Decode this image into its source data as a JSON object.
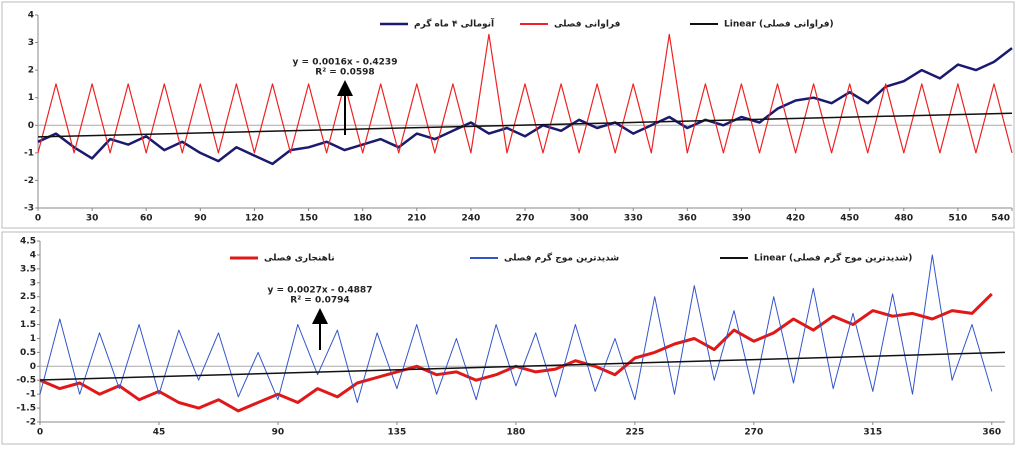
{
  "chart_data": [
    {
      "type": "line",
      "xlim": [
        0,
        540
      ],
      "xticks": [
        0,
        30,
        60,
        90,
        120,
        150,
        180,
        210,
        240,
        270,
        300,
        330,
        360,
        390,
        420,
        450,
        480,
        510,
        540
      ],
      "ylim": [
        -3,
        4
      ],
      "yticks": [
        -3,
        -2,
        -1,
        0,
        1,
        2,
        3,
        4
      ],
      "annotations": [
        "y = 0.0016x - 0.4239",
        "R² = 0.0598"
      ],
      "x": [
        0,
        10,
        20,
        30,
        40,
        50,
        60,
        70,
        80,
        90,
        100,
        110,
        120,
        130,
        140,
        150,
        160,
        170,
        180,
        190,
        200,
        210,
        220,
        230,
        240,
        250,
        260,
        270,
        280,
        290,
        300,
        310,
        320,
        330,
        340,
        350,
        360,
        370,
        380,
        390,
        400,
        410,
        420,
        430,
        440,
        450,
        460,
        470,
        480,
        490,
        500,
        510,
        520,
        530,
        540
      ],
      "series": [
        {
          "name": "آنومالی ۴ ماه گرم",
          "color": "#1a1a6e",
          "width": 2.5,
          "values": [
            -0.6,
            -0.3,
            -0.8,
            -1.2,
            -0.5,
            -0.7,
            -0.4,
            -0.9,
            -0.6,
            -1.0,
            -1.3,
            -0.8,
            -1.1,
            -1.4,
            -0.9,
            -0.8,
            -0.6,
            -0.9,
            -0.7,
            -0.5,
            -0.8,
            -0.3,
            -0.5,
            -0.2,
            0.1,
            -0.3,
            -0.1,
            -0.4,
            0.0,
            -0.2,
            0.2,
            -0.1,
            0.1,
            -0.3,
            0.0,
            0.3,
            -0.1,
            0.2,
            0.0,
            0.3,
            0.1,
            0.6,
            0.9,
            1.0,
            0.8,
            1.2,
            0.8,
            1.4,
            1.6,
            2.0,
            1.7,
            2.2,
            2.0,
            2.3,
            2.8
          ]
        },
        {
          "name": "فراوانی فصلی",
          "color": "#ee2222",
          "width": 1.2,
          "values": [
            -1,
            1.5,
            -1,
            1.5,
            -1,
            1.5,
            -1,
            1.5,
            -1,
            1.5,
            -1,
            1.5,
            -1,
            1.5,
            -1,
            1.5,
            -1,
            1.5,
            -1,
            1.5,
            -1,
            1.5,
            -1,
            1.5,
            -1,
            3.3,
            -1,
            1.5,
            -1,
            1.5,
            -1,
            1.5,
            -1,
            1.5,
            -1,
            3.3,
            -1,
            1.5,
            -1,
            1.5,
            -1,
            1.5,
            -1,
            1.5,
            -1,
            1.5,
            -1,
            1.5,
            -1,
            1.5,
            -1,
            1.5,
            -1,
            1.5,
            -1
          ]
        },
        {
          "name": "Linear (فراوانی فصلی)",
          "color": "#111111",
          "width": 1.5,
          "x": [
            0,
            540
          ],
          "values": [
            -0.42,
            0.44
          ]
        }
      ]
    },
    {
      "type": "line",
      "xlim": [
        0,
        365
      ],
      "xticks": [
        0,
        45,
        90,
        135,
        180,
        225,
        270,
        315,
        360
      ],
      "ylim": [
        -2,
        4.5
      ],
      "yticks": [
        -2,
        -1.5,
        -1,
        -0.5,
        0,
        0.5,
        1,
        1.5,
        2,
        2.5,
        3,
        3.5,
        4,
        4.5
      ],
      "annotations": [
        "y = 0.0027x - 0.4887",
        "R² = 0.0794"
      ],
      "x": [
        0,
        7.5,
        15,
        22.5,
        30,
        37.5,
        45,
        52.5,
        60,
        67.5,
        75,
        82.5,
        90,
        97.5,
        105,
        112.5,
        120,
        127.5,
        135,
        142.5,
        150,
        157.5,
        165,
        172.5,
        180,
        187.5,
        195,
        202.5,
        210,
        217.5,
        225,
        232.5,
        240,
        247.5,
        255,
        262.5,
        270,
        277.5,
        285,
        292.5,
        300,
        307.5,
        315,
        322.5,
        330,
        337.5,
        345,
        352.5,
        360
      ],
      "series": [
        {
          "name": "ناهنجاری فصلی",
          "color": "#e01818",
          "width": 3,
          "values": [
            -0.5,
            -0.8,
            -0.6,
            -1.0,
            -0.7,
            -1.2,
            -0.9,
            -1.3,
            -1.5,
            -1.2,
            -1.6,
            -1.3,
            -1.0,
            -1.3,
            -0.8,
            -1.1,
            -0.6,
            -0.4,
            -0.2,
            0.0,
            -0.3,
            -0.2,
            -0.5,
            -0.3,
            0.0,
            -0.2,
            -0.1,
            0.2,
            0.0,
            -0.3,
            0.3,
            0.5,
            0.8,
            1.0,
            0.6,
            1.3,
            0.9,
            1.2,
            1.7,
            1.3,
            1.8,
            1.5,
            2.0,
            1.8,
            1.9,
            1.7,
            2.0,
            1.9,
            2.6
          ]
        },
        {
          "name": "شدیدترین موج گرم فصلی",
          "color": "#3355cc",
          "width": 1,
          "values": [
            -1.0,
            1.7,
            -1.0,
            1.2,
            -0.8,
            1.5,
            -1.0,
            1.3,
            -0.5,
            1.2,
            -1.1,
            0.5,
            -1.2,
            1.5,
            -0.3,
            1.3,
            -1.3,
            1.2,
            -0.8,
            1.5,
            -1.0,
            1.0,
            -1.2,
            1.5,
            -0.7,
            1.2,
            -1.1,
            1.5,
            -0.9,
            1.0,
            -1.2,
            2.5,
            -1.0,
            2.9,
            -0.5,
            2.0,
            -1.0,
            2.5,
            -0.6,
            2.8,
            -0.8,
            1.9,
            -0.9,
            2.6,
            -1.0,
            4.0,
            -0.5,
            1.5,
            -0.9
          ]
        },
        {
          "name": "Linear (شدیدترین موج گرم فصلی)",
          "color": "#111111",
          "width": 1.5,
          "x": [
            0,
            365
          ],
          "values": [
            -0.49,
            0.5
          ]
        }
      ]
    }
  ]
}
